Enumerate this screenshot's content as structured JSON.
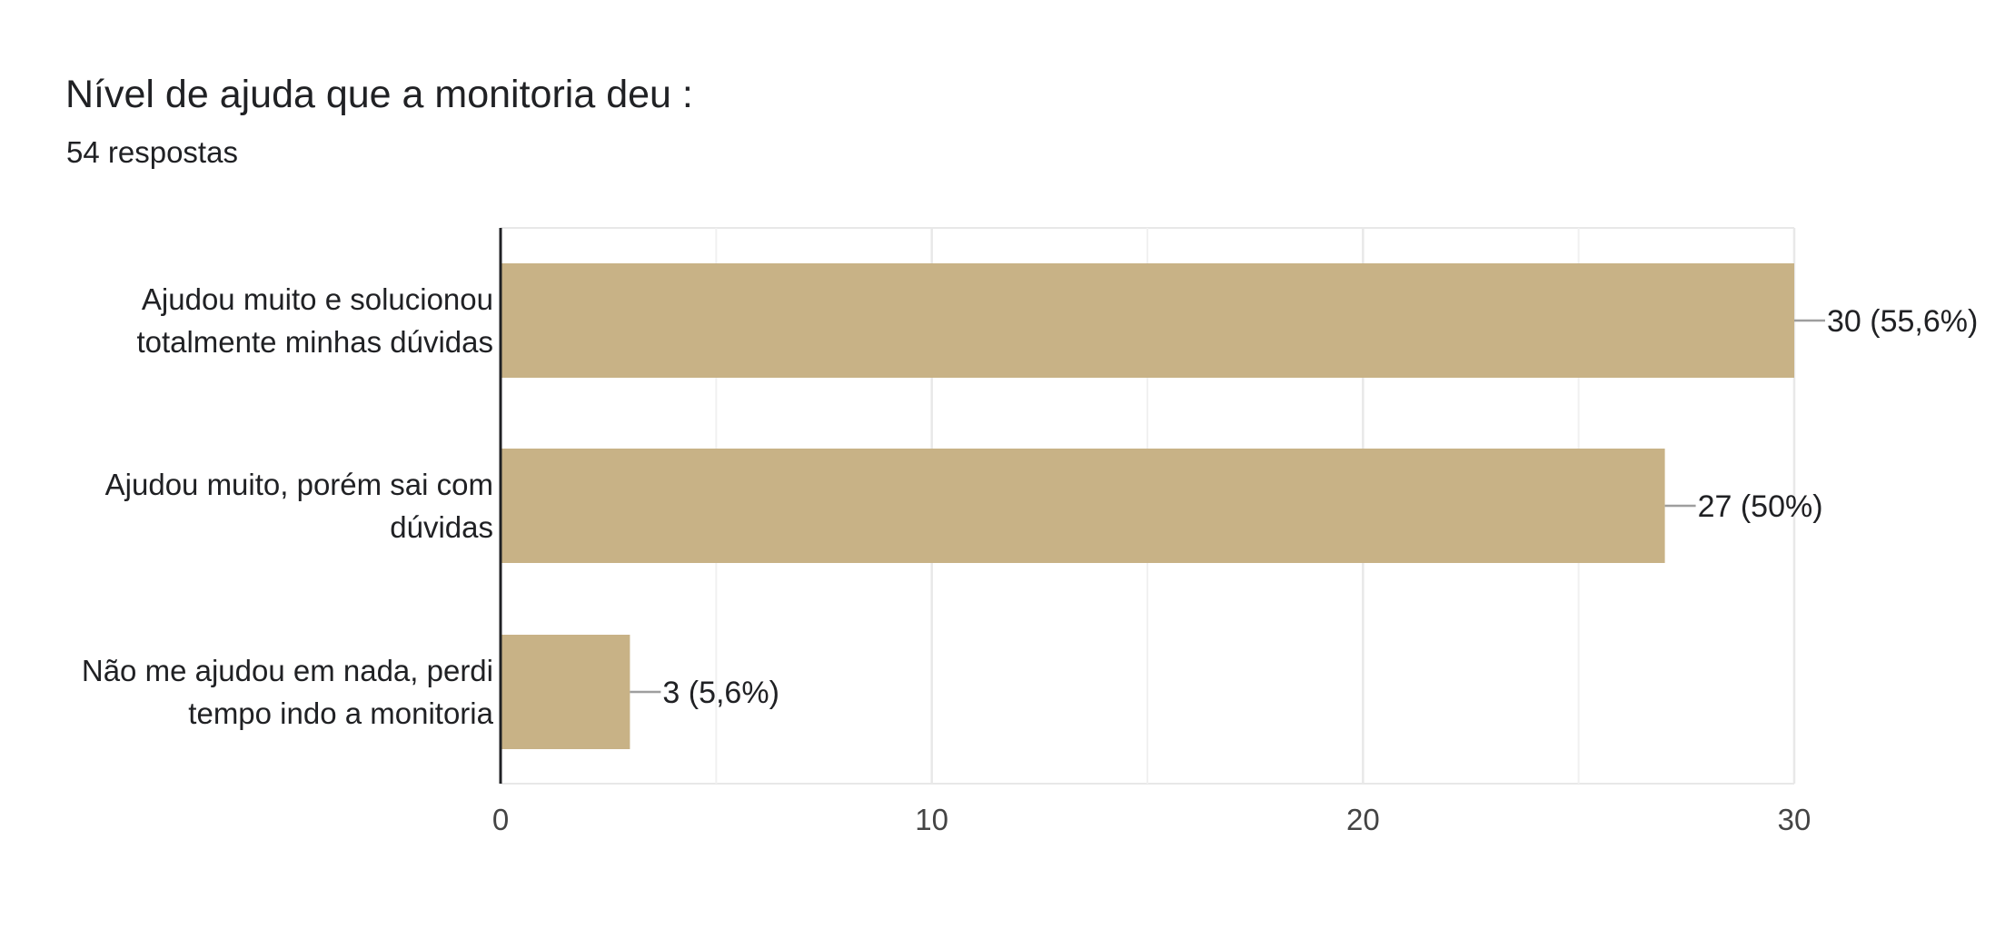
{
  "header": {
    "title": "Nível de ajuda que a monitoria deu :",
    "response_count": "54 respostas"
  },
  "colors": {
    "bar": "#c8b286",
    "grid": "#e8e8e8",
    "axis": "#202124",
    "leader": "#9e9e9e"
  },
  "chart_data": {
    "type": "bar",
    "orientation": "horizontal",
    "title": "Nível de ajuda que a monitoria deu :",
    "subtitle": "54 respostas",
    "categories": [
      [
        "Ajudou muito e solucionou",
        "totalmente minhas dúvidas"
      ],
      [
        "Ajudou muito, porém sai com",
        "dúvidas"
      ],
      [
        "Não me ajudou em nada, perdi",
        "tempo indo a monitoria"
      ]
    ],
    "values": [
      30,
      27,
      3
    ],
    "data_labels": [
      "30 (55,6%)",
      "27 (50%)",
      "3 (5,6%)"
    ],
    "xlim": [
      0,
      30
    ],
    "xticks": [
      0,
      10,
      20,
      30
    ],
    "xtick_labels": [
      "0",
      "10",
      "20",
      "30"
    ],
    "minor_grid": [
      5,
      15,
      25
    ],
    "grid": true,
    "legend": "none"
  }
}
